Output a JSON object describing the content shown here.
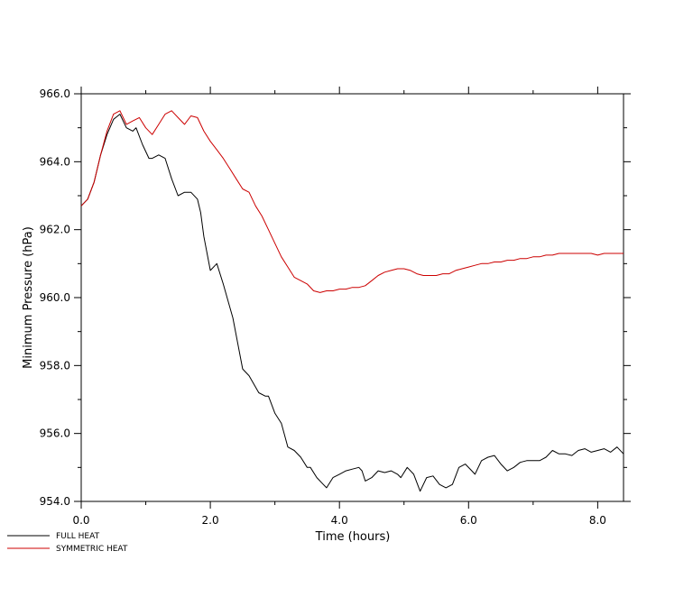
{
  "chart_data": {
    "type": "line",
    "title": "",
    "xlabel": "Time (hours)",
    "ylabel": "Minimum Pressure (hPa)",
    "xlim": [
      0,
      8.4
    ],
    "ylim": [
      954,
      966
    ],
    "x_ticks": [
      0,
      2,
      4,
      6,
      8
    ],
    "x_tick_labels": [
      "0.0",
      "2.0",
      "4.0",
      "6.0",
      "8.0"
    ],
    "x_minor_ticks": [
      1,
      3,
      5,
      7
    ],
    "y_ticks": [
      954,
      956,
      958,
      960,
      962,
      964,
      966
    ],
    "y_tick_labels": [
      "954.0",
      "956.0",
      "958.0",
      "960.0",
      "962.0",
      "964.0",
      "966.0"
    ],
    "y_minor_ticks": [
      955,
      957,
      959,
      961,
      963,
      965
    ],
    "grid": false,
    "legend_position": "bottom-left outside plot",
    "series": [
      {
        "name": "FULL HEAT",
        "color": "#000000",
        "points": [
          [
            0.0,
            962.7
          ],
          [
            0.1,
            962.9
          ],
          [
            0.2,
            963.4
          ],
          [
            0.3,
            964.2
          ],
          [
            0.4,
            964.8
          ],
          [
            0.5,
            965.25
          ],
          [
            0.6,
            965.4
          ],
          [
            0.7,
            965.0
          ],
          [
            0.8,
            964.9
          ],
          [
            0.85,
            965.0
          ],
          [
            0.95,
            964.5
          ],
          [
            1.05,
            964.1
          ],
          [
            1.1,
            964.1
          ],
          [
            1.2,
            964.2
          ],
          [
            1.3,
            964.1
          ],
          [
            1.4,
            963.5
          ],
          [
            1.5,
            963.0
          ],
          [
            1.6,
            963.1
          ],
          [
            1.7,
            963.1
          ],
          [
            1.8,
            962.9
          ],
          [
            1.85,
            962.5
          ],
          [
            1.9,
            961.8
          ],
          [
            2.0,
            960.8
          ],
          [
            2.1,
            961.0
          ],
          [
            2.2,
            960.4
          ],
          [
            2.35,
            959.4
          ],
          [
            2.5,
            957.9
          ],
          [
            2.6,
            957.7
          ],
          [
            2.75,
            957.2
          ],
          [
            2.85,
            957.1
          ],
          [
            2.9,
            957.1
          ],
          [
            3.0,
            956.6
          ],
          [
            3.1,
            956.3
          ],
          [
            3.2,
            955.6
          ],
          [
            3.3,
            955.5
          ],
          [
            3.4,
            955.3
          ],
          [
            3.5,
            955.0
          ],
          [
            3.55,
            955.0
          ],
          [
            3.65,
            954.7
          ],
          [
            3.75,
            954.5
          ],
          [
            3.8,
            954.4
          ],
          [
            3.9,
            954.7
          ],
          [
            4.0,
            954.8
          ],
          [
            4.1,
            954.9
          ],
          [
            4.2,
            954.95
          ],
          [
            4.3,
            955.0
          ],
          [
            4.35,
            954.9
          ],
          [
            4.4,
            954.6
          ],
          [
            4.5,
            954.7
          ],
          [
            4.6,
            954.9
          ],
          [
            4.7,
            954.85
          ],
          [
            4.8,
            954.9
          ],
          [
            4.9,
            954.8
          ],
          [
            4.95,
            954.7
          ],
          [
            5.05,
            955.0
          ],
          [
            5.15,
            954.8
          ],
          [
            5.25,
            954.3
          ],
          [
            5.35,
            954.7
          ],
          [
            5.45,
            954.75
          ],
          [
            5.55,
            954.5
          ],
          [
            5.65,
            954.4
          ],
          [
            5.75,
            954.5
          ],
          [
            5.85,
            955.0
          ],
          [
            5.95,
            955.1
          ],
          [
            6.05,
            954.9
          ],
          [
            6.1,
            954.8
          ],
          [
            6.2,
            955.2
          ],
          [
            6.3,
            955.3
          ],
          [
            6.4,
            955.35
          ],
          [
            6.5,
            955.1
          ],
          [
            6.6,
            954.9
          ],
          [
            6.7,
            955.0
          ],
          [
            6.8,
            955.15
          ],
          [
            6.9,
            955.2
          ],
          [
            7.0,
            955.2
          ],
          [
            7.1,
            955.2
          ],
          [
            7.2,
            955.3
          ],
          [
            7.3,
            955.5
          ],
          [
            7.4,
            955.4
          ],
          [
            7.5,
            955.4
          ],
          [
            7.6,
            955.35
          ],
          [
            7.7,
            955.5
          ],
          [
            7.8,
            955.55
          ],
          [
            7.9,
            955.45
          ],
          [
            8.0,
            955.5
          ],
          [
            8.1,
            955.55
          ],
          [
            8.2,
            955.45
          ],
          [
            8.3,
            955.6
          ],
          [
            8.4,
            955.4
          ]
        ]
      },
      {
        "name": "SYMMETRIC HEAT",
        "color": "#cc0000",
        "points": [
          [
            0.0,
            962.7
          ],
          [
            0.1,
            962.9
          ],
          [
            0.2,
            963.4
          ],
          [
            0.3,
            964.2
          ],
          [
            0.4,
            964.9
          ],
          [
            0.5,
            965.4
          ],
          [
            0.6,
            965.5
          ],
          [
            0.7,
            965.1
          ],
          [
            0.8,
            965.2
          ],
          [
            0.9,
            965.3
          ],
          [
            1.0,
            965.0
          ],
          [
            1.1,
            964.8
          ],
          [
            1.2,
            965.1
          ],
          [
            1.3,
            965.4
          ],
          [
            1.4,
            965.5
          ],
          [
            1.5,
            965.3
          ],
          [
            1.6,
            965.1
          ],
          [
            1.7,
            965.35
          ],
          [
            1.8,
            965.3
          ],
          [
            1.9,
            964.9
          ],
          [
            2.0,
            964.6
          ],
          [
            2.1,
            964.35
          ],
          [
            2.2,
            964.1
          ],
          [
            2.3,
            963.8
          ],
          [
            2.4,
            963.5
          ],
          [
            2.5,
            963.2
          ],
          [
            2.6,
            963.1
          ],
          [
            2.7,
            962.7
          ],
          [
            2.8,
            962.4
          ],
          [
            2.9,
            962.0
          ],
          [
            3.0,
            961.6
          ],
          [
            3.1,
            961.2
          ],
          [
            3.2,
            960.9
          ],
          [
            3.3,
            960.6
          ],
          [
            3.4,
            960.5
          ],
          [
            3.5,
            960.4
          ],
          [
            3.6,
            960.2
          ],
          [
            3.7,
            960.15
          ],
          [
            3.8,
            960.2
          ],
          [
            3.9,
            960.2
          ],
          [
            4.0,
            960.25
          ],
          [
            4.1,
            960.25
          ],
          [
            4.2,
            960.3
          ],
          [
            4.3,
            960.3
          ],
          [
            4.4,
            960.35
          ],
          [
            4.5,
            960.5
          ],
          [
            4.6,
            960.65
          ],
          [
            4.7,
            960.75
          ],
          [
            4.8,
            960.8
          ],
          [
            4.9,
            960.85
          ],
          [
            5.0,
            960.85
          ],
          [
            5.1,
            960.8
          ],
          [
            5.2,
            960.7
          ],
          [
            5.3,
            960.65
          ],
          [
            5.4,
            960.65
          ],
          [
            5.5,
            960.65
          ],
          [
            5.6,
            960.7
          ],
          [
            5.7,
            960.7
          ],
          [
            5.8,
            960.8
          ],
          [
            5.9,
            960.85
          ],
          [
            6.0,
            960.9
          ],
          [
            6.1,
            960.95
          ],
          [
            6.2,
            961.0
          ],
          [
            6.3,
            961.0
          ],
          [
            6.4,
            961.05
          ],
          [
            6.5,
            961.05
          ],
          [
            6.6,
            961.1
          ],
          [
            6.7,
            961.1
          ],
          [
            6.8,
            961.15
          ],
          [
            6.9,
            961.15
          ],
          [
            7.0,
            961.2
          ],
          [
            7.1,
            961.2
          ],
          [
            7.2,
            961.25
          ],
          [
            7.3,
            961.25
          ],
          [
            7.4,
            961.3
          ],
          [
            7.5,
            961.3
          ],
          [
            7.6,
            961.3
          ],
          [
            7.7,
            961.3
          ],
          [
            7.8,
            961.3
          ],
          [
            7.9,
            961.3
          ],
          [
            8.0,
            961.25
          ],
          [
            8.1,
            961.3
          ],
          [
            8.2,
            961.3
          ],
          [
            8.3,
            961.3
          ],
          [
            8.4,
            961.3
          ]
        ]
      }
    ]
  }
}
